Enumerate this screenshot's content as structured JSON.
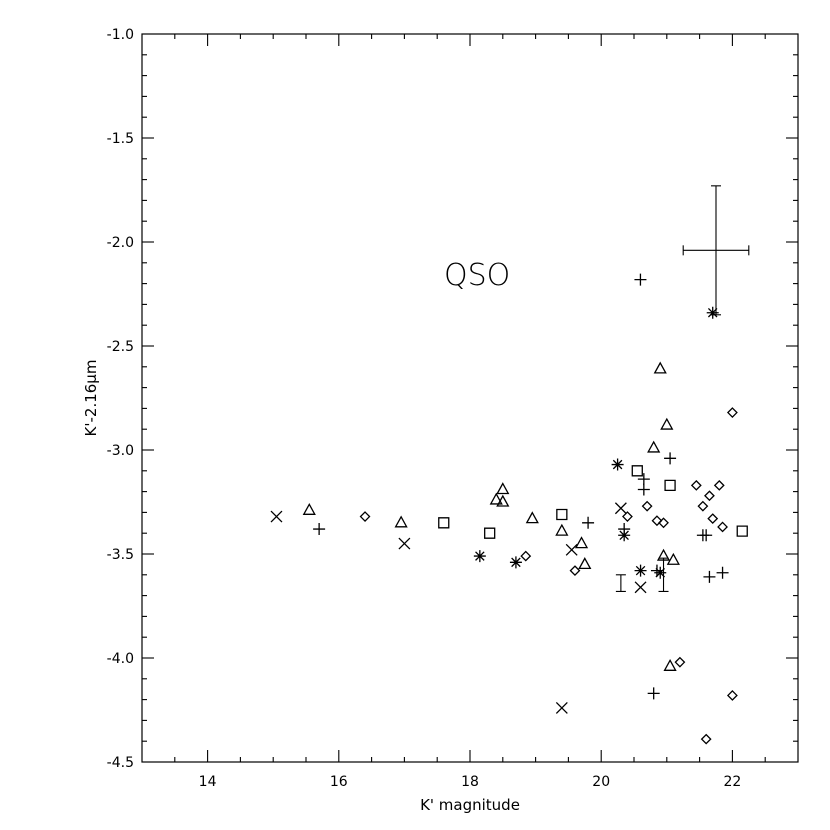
{
  "chart_data": {
    "type": "scatter",
    "title": "",
    "xlabel": "K' magnitude",
    "ylabel": "K'-2.16μm",
    "xlim": [
      13,
      23
    ],
    "ylim": [
      -4.5,
      -1.0
    ],
    "grid": false,
    "legend": "none",
    "x_ticks": [
      "14",
      "16",
      "18",
      "20",
      "22"
    ],
    "y_ticks": [
      "-1.0",
      "-1.5",
      "-2.0",
      "-2.5",
      "-3.0",
      "-3.5",
      "-4.0",
      "-4.5"
    ],
    "annotation": {
      "text": "QSO",
      "marker": "plus",
      "x": 20.4,
      "y": -2.2
    },
    "series": [
      {
        "marker": "cross",
        "points": [
          [
            15.05,
            -3.32
          ],
          [
            17.0,
            -3.45
          ],
          [
            19.4,
            -4.24
          ],
          [
            19.55,
            -3.48
          ],
          [
            20.3,
            -3.28
          ],
          [
            20.6,
            -3.66
          ]
        ]
      },
      {
        "marker": "triangle",
        "points": [
          [
            15.55,
            -3.29
          ],
          [
            16.95,
            -3.35
          ],
          [
            18.4,
            -3.24
          ],
          [
            18.5,
            -3.19
          ],
          [
            18.5,
            -3.25
          ],
          [
            18.95,
            -3.33
          ],
          [
            19.4,
            -3.39
          ],
          [
            19.7,
            -3.45
          ],
          [
            19.75,
            -3.55
          ],
          [
            20.8,
            -2.99
          ],
          [
            20.9,
            -2.61
          ],
          [
            20.95,
            -3.51
          ],
          [
            21.0,
            -2.88
          ],
          [
            21.05,
            -4.04
          ],
          [
            21.1,
            -3.53
          ]
        ]
      },
      {
        "marker": "plus",
        "points": [
          [
            15.7,
            -3.38
          ],
          [
            19.8,
            -3.35
          ],
          [
            20.35,
            -3.38
          ],
          [
            20.65,
            -3.14
          ],
          [
            20.65,
            -3.19
          ],
          [
            20.8,
            -4.17
          ],
          [
            20.85,
            -3.58
          ],
          [
            21.05,
            -3.04
          ],
          [
            21.55,
            -3.41
          ],
          [
            21.6,
            -3.41
          ],
          [
            21.65,
            -3.61
          ],
          [
            21.85,
            -3.59
          ]
        ]
      },
      {
        "marker": "diamond",
        "points": [
          [
            16.4,
            -3.32
          ],
          [
            18.85,
            -3.51
          ],
          [
            19.6,
            -3.58
          ],
          [
            20.4,
            -3.32
          ],
          [
            20.7,
            -3.27
          ],
          [
            20.85,
            -3.34
          ],
          [
            20.95,
            -3.35
          ],
          [
            21.2,
            -4.02
          ],
          [
            21.45,
            -3.17
          ],
          [
            21.55,
            -3.27
          ],
          [
            21.6,
            -4.39
          ],
          [
            21.65,
            -3.22
          ],
          [
            21.7,
            -3.33
          ],
          [
            21.8,
            -3.17
          ],
          [
            21.85,
            -3.37
          ],
          [
            22.0,
            -2.82
          ],
          [
            22.0,
            -4.18
          ]
        ]
      },
      {
        "marker": "square",
        "points": [
          [
            17.6,
            -3.35
          ],
          [
            18.3,
            -3.4
          ],
          [
            19.4,
            -3.31
          ],
          [
            20.55,
            -3.1
          ],
          [
            21.05,
            -3.17
          ],
          [
            22.15,
            -3.39
          ]
        ]
      },
      {
        "marker": "asterisk",
        "points": [
          [
            18.15,
            -3.51
          ],
          [
            18.7,
            -3.54
          ],
          [
            20.25,
            -3.07
          ],
          [
            20.35,
            -3.41
          ],
          [
            20.6,
            -3.58
          ],
          [
            20.9,
            -3.59
          ],
          [
            21.7,
            -2.34
          ]
        ]
      }
    ],
    "error_bars": [
      {
        "x": 21.75,
        "y": -2.04,
        "xerr": 0.5,
        "yerr": 0.31
      },
      {
        "x": 20.95,
        "y": -3.6,
        "xerr": 0.0,
        "yerr": 0.08
      },
      {
        "x": 20.3,
        "y": -3.64,
        "xerr": 0.0,
        "yerr": 0.04
      }
    ]
  }
}
